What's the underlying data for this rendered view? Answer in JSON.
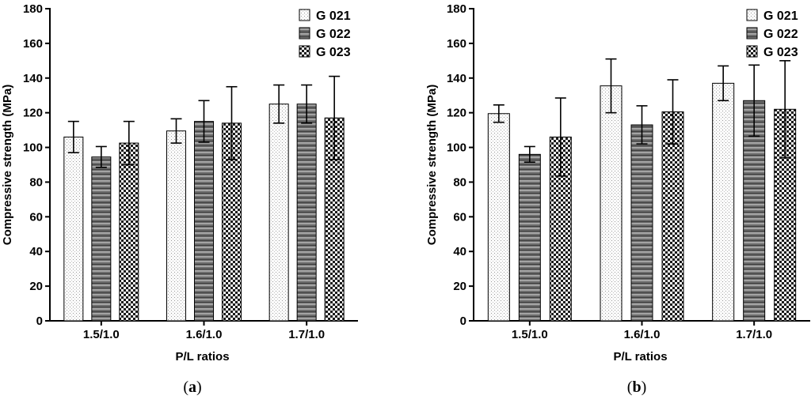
{
  "chart_data": [
    {
      "type": "bar",
      "panel_label": "a",
      "categories": [
        "1.5/1.0",
        "1.6/1.0",
        "1.7/1.0"
      ],
      "series": [
        {
          "name": "G 021",
          "values": [
            106,
            109.5,
            125
          ],
          "errors": [
            9,
            7,
            11
          ]
        },
        {
          "name": "G 022",
          "values": [
            94.5,
            115,
            125
          ],
          "errors": [
            6,
            12,
            11
          ]
        },
        {
          "name": "G 023",
          "values": [
            102.5,
            114,
            117
          ],
          "errors": [
            12.5,
            21,
            24
          ]
        }
      ],
      "xlabel": "P/L ratios",
      "ylabel": "Compressive strength (MPa)",
      "ylim": [
        0,
        180
      ],
      "yticks": [
        "0",
        "20",
        "40",
        "60",
        "80",
        "100",
        "120",
        "140",
        "160",
        "180"
      ],
      "legend_position": "top-right"
    },
    {
      "type": "bar",
      "panel_label": "b",
      "categories": [
        "1.5/1.0",
        "1.6/1.0",
        "1.7/1.0"
      ],
      "series": [
        {
          "name": "G 021",
          "values": [
            119.5,
            135.5,
            137
          ],
          "errors": [
            5,
            15.5,
            10
          ]
        },
        {
          "name": "G 022",
          "values": [
            96,
            113,
            127
          ],
          "errors": [
            4.5,
            11,
            20.5
          ]
        },
        {
          "name": "G 023",
          "values": [
            106,
            120.5,
            122
          ],
          "errors": [
            22.5,
            18.5,
            28
          ]
        }
      ],
      "xlabel": "P/L ratios",
      "ylabel": "Compressive strength (MPa)",
      "ylim": [
        0,
        180
      ],
      "yticks": [
        "0",
        "20",
        "40",
        "60",
        "80",
        "100",
        "120",
        "140",
        "160",
        "180"
      ],
      "legend_position": "top-right"
    }
  ],
  "colors": {
    "axis": "#000000",
    "background": "#ffffff"
  }
}
